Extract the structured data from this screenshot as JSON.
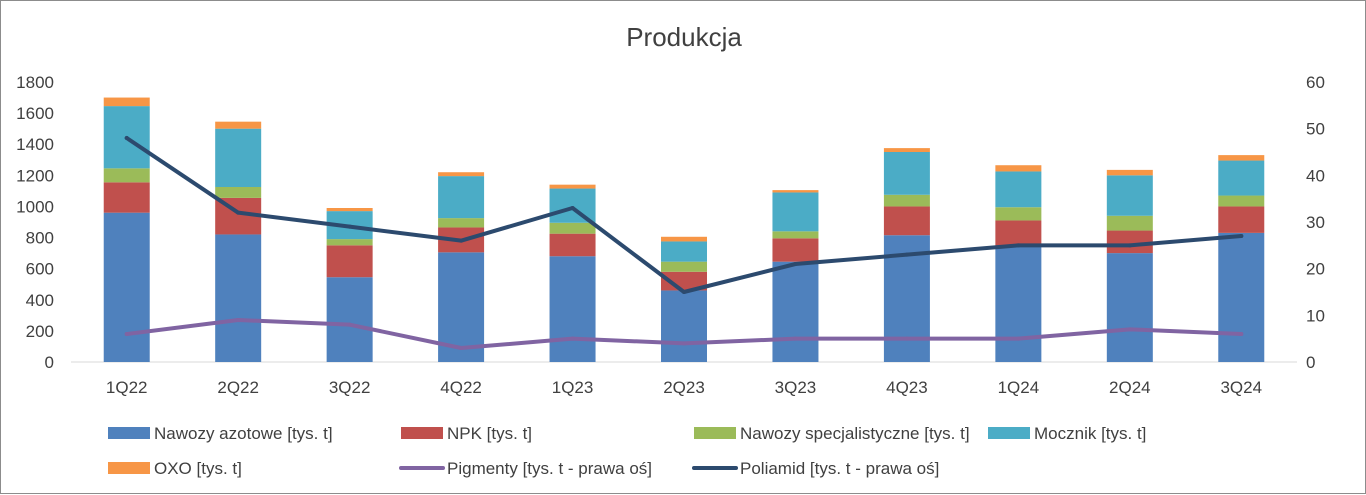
{
  "chart_data": {
    "type": "bar",
    "stacked": true,
    "title": "Produkcja",
    "categories": [
      "1Q22",
      "2Q22",
      "3Q22",
      "4Q22",
      "1Q23",
      "2Q23",
      "3Q23",
      "4Q23",
      "1Q24",
      "2Q24",
      "3Q24"
    ],
    "ylim": [
      0,
      1800
    ],
    "yticks": [
      0,
      200,
      400,
      600,
      800,
      1000,
      1200,
      1400,
      1600,
      1800
    ],
    "y2lim": [
      0,
      60
    ],
    "y2ticks": [
      0,
      10,
      20,
      30,
      40,
      50,
      60
    ],
    "grid": false,
    "legend_position": "bottom",
    "series": [
      {
        "name": "Nawozy azotowe [tys. t]",
        "kind": "bar",
        "axis": "left",
        "color": "#4f81bd",
        "values": [
          960,
          820,
          545,
          705,
          680,
          460,
          645,
          815,
          740,
          700,
          830
        ]
      },
      {
        "name": "NPK [tys. t]",
        "kind": "bar",
        "axis": "left",
        "color": "#c0504d",
        "values": [
          195,
          235,
          205,
          160,
          145,
          120,
          150,
          185,
          170,
          145,
          170
        ]
      },
      {
        "name": "Nawozy specjalistyczne [tys. t]",
        "kind": "bar",
        "axis": "left",
        "color": "#9bbb59",
        "values": [
          90,
          70,
          40,
          60,
          70,
          65,
          45,
          75,
          85,
          95,
          70
        ]
      },
      {
        "name": "Mocznik  [tys. t]",
        "kind": "bar",
        "axis": "left",
        "color": "#4bacc6",
        "values": [
          400,
          375,
          180,
          270,
          220,
          130,
          250,
          275,
          230,
          260,
          225
        ]
      },
      {
        "name": "OXO [tys. t]",
        "kind": "bar",
        "axis": "left",
        "color": "#f79646",
        "values": [
          55,
          45,
          20,
          25,
          25,
          30,
          15,
          25,
          40,
          35,
          35
        ]
      },
      {
        "name": "Pigmenty  [tys. t - prawa oś]",
        "kind": "line",
        "axis": "right",
        "color": "#8064a2",
        "values": [
          6,
          9,
          8,
          3,
          5,
          4,
          5,
          5,
          5,
          7,
          6
        ]
      },
      {
        "name": "Poliamid [tys. t - prawa oś]",
        "kind": "line",
        "axis": "right",
        "color": "#2c4a6e",
        "values": [
          48,
          32,
          29,
          26,
          33,
          15,
          21,
          23,
          25,
          25,
          27
        ]
      }
    ]
  }
}
